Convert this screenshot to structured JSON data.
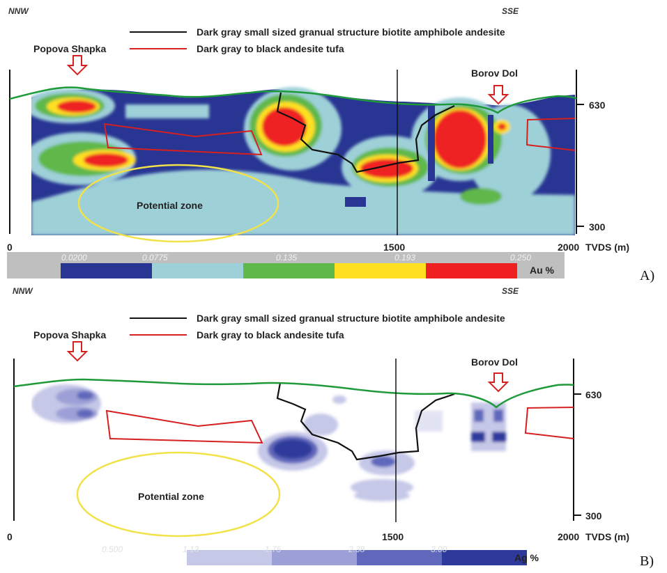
{
  "panels": [
    {
      "letter": "A)",
      "nnw": "NNW",
      "sse": "SSE",
      "legend_black": "Dark gray small sized granual structure biotite amphibole andesite",
      "legend_red": "Dark gray to black andesite tufa",
      "place_left": "Popova Shapka",
      "place_right": "Borov Dol",
      "zone": "Potential zone",
      "x0": "0",
      "x1500": "1500",
      "x2000": "2000",
      "xunit": "TVDS (m)",
      "y630": "630",
      "y300": "300",
      "scale_unit": "Au %",
      "scale_values": [
        "0.0200",
        "0.0775",
        "0.135",
        "0.193",
        "0.250"
      ],
      "scale_colors": [
        "#283593",
        "#9ed0d8",
        "#5fb84a",
        "#ffe020",
        "#ee2020"
      ]
    },
    {
      "letter": "B)",
      "nnw": "NNW",
      "sse": "SSE",
      "legend_black": "Dark gray small sized granual structure biotite amphibole andesite",
      "legend_red": "Dark gray to black andesite tufa",
      "place_left": "Popova Shapka",
      "place_right": "Borov Dol",
      "zone": "Potential zone",
      "x0": "0",
      "x1500": "1500",
      "x2000": "2000",
      "xunit": "TVDS (m)",
      "y630": "630",
      "y300": "300",
      "scale_unit": "Ag %",
      "scale_values": [
        "0.500",
        "1.13",
        "1.75",
        "2.38",
        "3.00"
      ],
      "scale_colors": [
        "#ffffff",
        "#c6c8e8",
        "#9ca0d6",
        "#6068bb",
        "#2d3a9c"
      ]
    }
  ]
}
